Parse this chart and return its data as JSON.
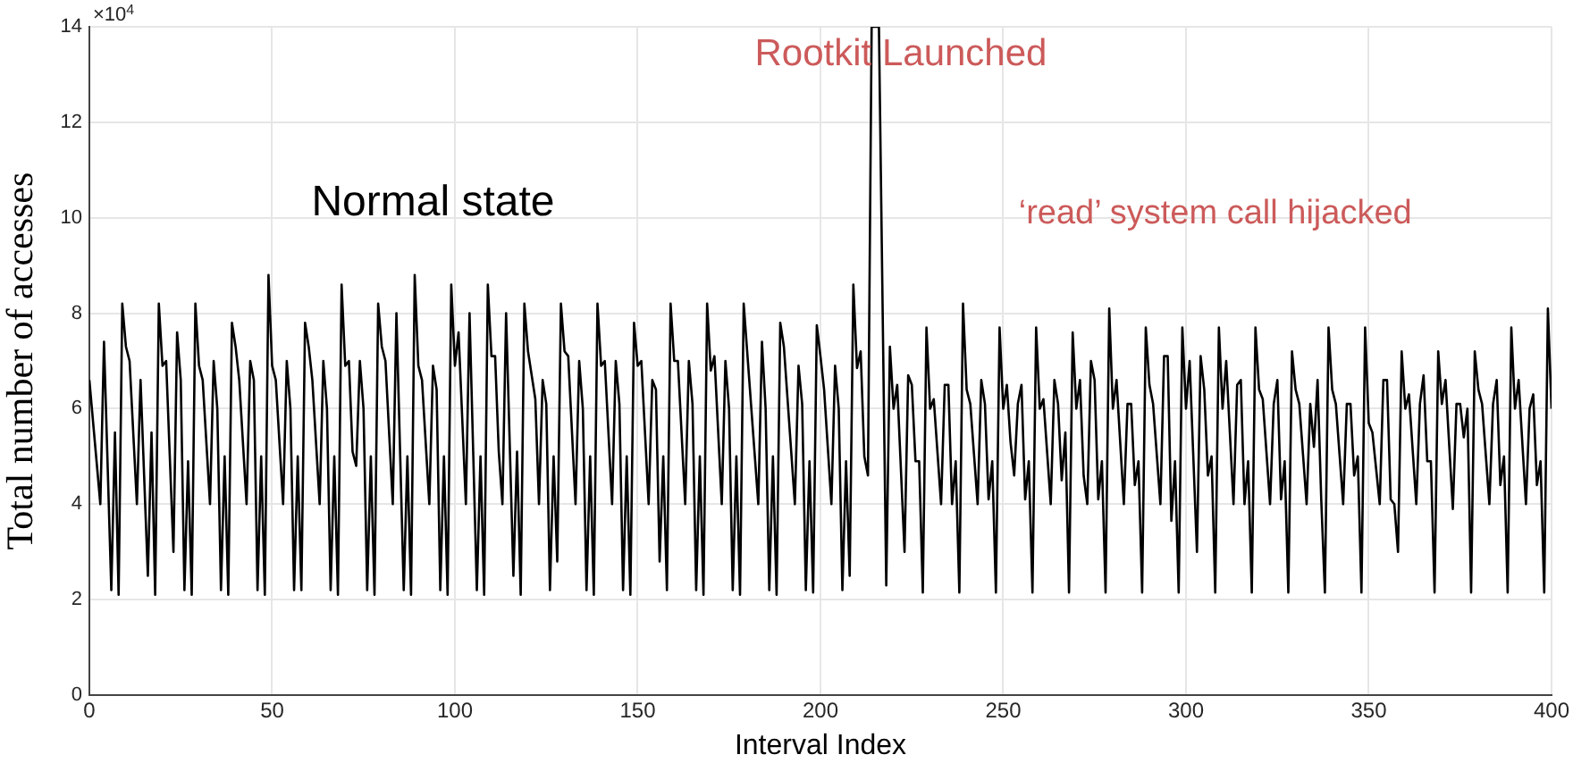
{
  "chart_data": {
    "type": "line",
    "xlabel": "Interval Index",
    "ylabel": "Total number of accesses",
    "annotations": [
      "×10$^{4}$",
      "Normal state",
      "Rootkit Launched",
      "‘read’ system call hijacked"
    ],
    "xlim": [
      0,
      400
    ],
    "xticks": [
      0,
      50,
      100,
      150,
      200,
      250,
      300,
      350,
      400
    ],
    "ylim": [
      0,
      14
    ],
    "yticks": [
      0,
      2,
      4,
      6,
      8,
      10,
      12,
      14
    ],
    "grid": true,
    "legend": false,
    "series": [
      {
        "color": "#000000",
        "x": [
          0,
          3,
          4,
          6,
          7,
          8,
          9,
          10,
          11,
          13,
          14,
          16,
          17,
          18,
          19,
          20,
          21,
          23,
          24,
          25,
          26,
          27,
          28,
          29,
          30,
          31,
          33,
          34,
          35,
          36,
          37,
          38,
          39,
          40,
          41,
          43,
          44,
          45,
          46,
          47,
          48,
          49,
          50,
          51,
          53,
          54,
          55,
          56,
          57,
          58,
          59,
          60,
          61,
          63,
          64,
          65,
          66,
          67,
          68,
          69,
          70,
          71,
          72,
          73,
          74,
          75,
          76,
          77,
          78,
          79,
          80,
          81,
          83,
          84,
          86,
          87,
          88,
          89,
          90,
          91,
          93,
          94,
          95,
          96,
          97,
          98,
          99,
          100,
          101,
          103,
          104,
          106,
          107,
          108,
          109,
          110,
          111,
          112,
          113,
          114,
          116,
          117,
          118,
          119,
          120,
          122,
          123,
          124,
          125,
          126,
          127,
          128,
          129,
          130,
          131,
          133,
          134,
          135,
          136,
          137,
          138,
          139,
          140,
          141,
          143,
          144,
          145,
          146,
          147,
          148,
          149,
          150,
          151,
          153,
          154,
          155,
          156,
          157,
          158,
          159,
          160,
          161,
          163,
          164,
          165,
          166,
          167,
          168,
          169,
          170,
          171,
          173,
          174,
          175,
          176,
          177,
          178,
          179,
          183,
          184,
          185,
          186,
          187,
          188,
          189,
          190,
          193,
          194,
          195,
          196,
          197,
          198,
          199,
          200,
          201,
          203,
          204,
          205,
          206,
          207,
          208,
          209,
          210,
          211,
          212,
          213,
          214,
          215,
          216,
          218,
          219,
          220,
          221,
          223,
          224,
          225,
          226,
          227,
          228,
          229,
          230,
          231,
          233,
          234,
          235,
          236,
          237,
          238,
          239,
          240,
          241,
          243,
          244,
          245,
          246,
          247,
          248,
          249,
          250,
          251,
          252,
          253,
          254,
          255,
          256,
          257,
          258,
          259,
          260,
          261,
          263,
          264,
          265,
          266,
          267,
          268,
          269,
          270,
          271,
          272,
          273,
          274,
          275,
          276,
          277,
          278,
          279,
          280,
          281,
          283,
          284,
          285,
          286,
          287,
          288,
          289,
          290,
          291,
          293,
          294,
          295,
          296,
          297,
          298,
          299,
          300,
          301,
          303,
          304,
          305,
          306,
          307,
          308,
          309,
          310,
          311,
          313,
          314,
          315,
          316,
          317,
          318,
          319,
          320,
          321,
          323,
          324,
          325,
          326,
          327,
          328,
          329,
          330,
          331,
          333,
          334,
          335,
          336,
          337,
          338,
          339,
          340,
          341,
          343,
          344,
          345,
          346,
          347,
          348,
          349,
          350,
          351,
          353,
          354,
          355,
          356,
          357,
          358,
          359,
          360,
          361,
          363,
          364,
          365,
          366,
          367,
          368,
          369,
          370,
          371,
          373,
          374,
          375,
          376,
          377,
          378,
          379,
          380,
          381,
          383,
          384,
          385,
          386,
          387,
          388,
          389,
          390,
          391,
          393,
          394,
          395,
          396,
          397,
          398,
          399,
          400
        ],
        "values": [
          6.6,
          4.0,
          7.4,
          2.2,
          5.5,
          2.1,
          8.2,
          7.3,
          7.0,
          4.0,
          6.6,
          2.5,
          5.5,
          2.1,
          8.2,
          6.9,
          7.0,
          3.0,
          7.6,
          6.6,
          2.2,
          4.9,
          2.1,
          8.2,
          6.9,
          6.6,
          4.0,
          7.0,
          6.0,
          2.2,
          5.0,
          2.1,
          7.8,
          7.3,
          6.6,
          4.0,
          7.0,
          6.6,
          2.2,
          5.0,
          2.1,
          8.8,
          6.9,
          6.6,
          4.0,
          7.0,
          6.0,
          2.2,
          5.0,
          2.2,
          7.8,
          7.3,
          6.6,
          4.0,
          7.0,
          6.0,
          2.2,
          5.0,
          2.1,
          8.6,
          6.9,
          7.0,
          5.1,
          4.8,
          7.0,
          6.0,
          2.2,
          5.0,
          2.1,
          8.2,
          7.3,
          7.0,
          4.0,
          8.0,
          2.2,
          5.0,
          2.1,
          8.8,
          6.9,
          6.6,
          4.0,
          6.9,
          6.4,
          2.2,
          5.0,
          2.1,
          8.6,
          6.9,
          7.6,
          4.0,
          8.0,
          2.2,
          5.0,
          2.1,
          8.6,
          7.1,
          7.1,
          5.1,
          4.0,
          8.0,
          2.5,
          5.1,
          2.1,
          8.2,
          7.2,
          6.2,
          4.0,
          6.6,
          6.1,
          2.2,
          5.0,
          2.8,
          8.2,
          7.2,
          7.1,
          4.0,
          7.0,
          6.0,
          2.2,
          5.0,
          2.1,
          8.2,
          6.9,
          7.0,
          4.0,
          7.0,
          6.1,
          2.2,
          5.0,
          2.1,
          7.8,
          6.9,
          7.0,
          4.0,
          6.6,
          6.4,
          2.8,
          5.0,
          2.2,
          8.2,
          7.0,
          7.0,
          4.0,
          7.0,
          6.1,
          2.2,
          5.0,
          2.1,
          8.2,
          6.8,
          7.1,
          4.0,
          7.0,
          6.0,
          2.2,
          5.0,
          2.1,
          8.2,
          4.0,
          7.4,
          6.0,
          2.2,
          5.0,
          2.1,
          7.8,
          7.3,
          4.0,
          6.9,
          6.1,
          2.2,
          4.9,
          2.15,
          7.75,
          7.1,
          6.4,
          4.0,
          6.9,
          6.0,
          2.2,
          4.9,
          2.5,
          8.6,
          6.85,
          7.2,
          5.0,
          4.6,
          14,
          14,
          14,
          2.3,
          7.3,
          6.0,
          6.5,
          3.0,
          6.7,
          6.5,
          4.9,
          4.9,
          2.15,
          7.7,
          6.0,
          6.2,
          4.0,
          6.5,
          6.5,
          4.0,
          4.9,
          2.15,
          8.2,
          6.4,
          6.1,
          4.0,
          6.6,
          6.1,
          4.1,
          4.9,
          2.15,
          7.7,
          6.0,
          6.5,
          5.3,
          4.6,
          6.1,
          6.5,
          4.1,
          4.9,
          2.15,
          7.7,
          6.0,
          6.2,
          4.0,
          6.6,
          6.1,
          4.5,
          5.5,
          2.15,
          7.6,
          6.0,
          6.6,
          4.6,
          4.0,
          7.0,
          6.6,
          4.1,
          4.9,
          2.15,
          8.1,
          6.0,
          6.6,
          4.0,
          6.1,
          6.1,
          4.4,
          4.9,
          2.15,
          7.7,
          6.5,
          6.1,
          4.0,
          7.1,
          7.1,
          3.65,
          4.9,
          2.15,
          7.7,
          6.0,
          7.0,
          3.0,
          7.1,
          6.4,
          4.6,
          5.0,
          2.15,
          7.7,
          6.0,
          7.0,
          4.0,
          6.5,
          6.6,
          4.0,
          4.9,
          2.15,
          7.7,
          6.4,
          6.2,
          4.0,
          6.1,
          6.6,
          4.1,
          4.9,
          2.15,
          7.2,
          6.4,
          6.1,
          4.0,
          6.1,
          5.2,
          6.6,
          4.1,
          2.15,
          7.7,
          6.4,
          6.1,
          4.0,
          6.1,
          6.1,
          4.6,
          5.0,
          2.15,
          7.7,
          5.7,
          5.5,
          4.0,
          6.6,
          6.6,
          4.1,
          4.0,
          3.0,
          7.2,
          6.0,
          6.3,
          4.0,
          6.1,
          6.7,
          4.9,
          4.9,
          2.15,
          7.2,
          6.1,
          6.6,
          3.9,
          6.1,
          6.1,
          5.4,
          6.0,
          2.15,
          7.2,
          6.4,
          6.1,
          4.0,
          6.1,
          6.6,
          4.4,
          5.0,
          2.15,
          7.7,
          6.0,
          6.6,
          4.0,
          6.0,
          6.3,
          4.4,
          4.9,
          2.15,
          8.1,
          6.0
        ]
      }
    ]
  }
}
